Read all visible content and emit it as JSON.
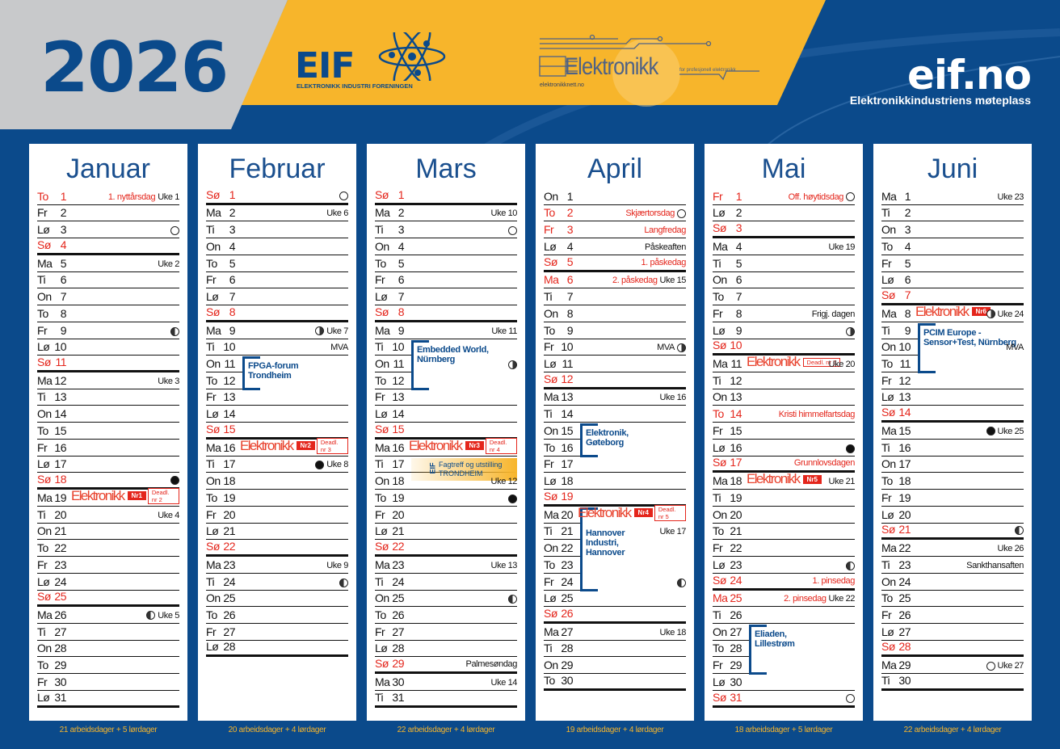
{
  "header": {
    "year": "2026",
    "eif_logo": "EIF",
    "eif_logo_sub": "ELEKTRONIKK INDUSTRI FORENINGEN",
    "elektronikk_logo": "Elektronikk",
    "elektronikk_tagline": "for profesjonell elektronikk",
    "elektronikk_url": "elektronikknett.no",
    "site": "eif.no",
    "tagline": "Elektronikkindustriens møteplass"
  },
  "colors": {
    "blue": "#0b4a8b",
    "yellow": "#f7b52b",
    "gray": "#c8c9cb",
    "red": "#e4261c"
  },
  "badge_word": "Elektronikk",
  "months": [
    {
      "name": "Januar",
      "footer": "21 arbeidsdager + 5 lørdager",
      "days": [
        {
          "wd": "To",
          "d": "1",
          "red": true,
          "note": "1. nyttårsdag",
          "noteRed": true,
          "uke": "Uke 1"
        },
        {
          "wd": "Fr",
          "d": "2"
        },
        {
          "wd": "Lø",
          "d": "3",
          "moon": "full"
        },
        {
          "wd": "Sø",
          "d": "4",
          "red": true
        },
        {
          "wd": "Ma",
          "d": "5",
          "uke": "Uke 2"
        },
        {
          "wd": "Ti",
          "d": "6"
        },
        {
          "wd": "On",
          "d": "7"
        },
        {
          "wd": "To",
          "d": "8"
        },
        {
          "wd": "Fr",
          "d": "9",
          "moon": "half-l"
        },
        {
          "wd": "Lø",
          "d": "10"
        },
        {
          "wd": "Sø",
          "d": "11",
          "red": true
        },
        {
          "wd": "Ma",
          "d": "12",
          "uke": "Uke 3"
        },
        {
          "wd": "Ti",
          "d": "13"
        },
        {
          "wd": "On",
          "d": "14"
        },
        {
          "wd": "To",
          "d": "15"
        },
        {
          "wd": "Fr",
          "d": "16"
        },
        {
          "wd": "Lø",
          "d": "17"
        },
        {
          "wd": "Sø",
          "d": "18",
          "red": true,
          "moon": "new"
        },
        {
          "wd": "Ma",
          "d": "19",
          "elek": {
            "nr": "Nr1",
            "deadline": "Deadl. nr 2"
          }
        },
        {
          "wd": "Ti",
          "d": "20",
          "uke": "Uke 4"
        },
        {
          "wd": "On",
          "d": "21"
        },
        {
          "wd": "To",
          "d": "22"
        },
        {
          "wd": "Fr",
          "d": "23"
        },
        {
          "wd": "Lø",
          "d": "24"
        },
        {
          "wd": "Sø",
          "d": "25",
          "red": true
        },
        {
          "wd": "Ma",
          "d": "26",
          "moon": "half-l",
          "uke": "Uke 5"
        },
        {
          "wd": "Ti",
          "d": "27"
        },
        {
          "wd": "On",
          "d": "28"
        },
        {
          "wd": "To",
          "d": "29"
        },
        {
          "wd": "Fr",
          "d": "30"
        },
        {
          "wd": "Lø",
          "d": "31"
        }
      ],
      "events": []
    },
    {
      "name": "Februar",
      "footer": "20 arbeidsdager + 4 lørdager",
      "days": [
        {
          "wd": "Sø",
          "d": "1",
          "red": true,
          "moon": "full"
        },
        {
          "wd": "Ma",
          "d": "2",
          "uke": "Uke 6"
        },
        {
          "wd": "Ti",
          "d": "3"
        },
        {
          "wd": "On",
          "d": "4"
        },
        {
          "wd": "To",
          "d": "5"
        },
        {
          "wd": "Fr",
          "d": "6"
        },
        {
          "wd": "Lø",
          "d": "7"
        },
        {
          "wd": "Sø",
          "d": "8",
          "red": true
        },
        {
          "wd": "Ma",
          "d": "9",
          "moon": "half-r",
          "uke": "Uke 7"
        },
        {
          "wd": "Ti",
          "d": "10",
          "mva": "MVA"
        },
        {
          "wd": "On",
          "d": "11"
        },
        {
          "wd": "To",
          "d": "12"
        },
        {
          "wd": "Fr",
          "d": "13"
        },
        {
          "wd": "Lø",
          "d": "14"
        },
        {
          "wd": "Sø",
          "d": "15",
          "red": true
        },
        {
          "wd": "Ma",
          "d": "16",
          "elek": {
            "nr": "Nr2",
            "deadline": "Deadl. nr 3"
          }
        },
        {
          "wd": "Ti",
          "d": "17",
          "moon": "new",
          "uke": "Uke 8"
        },
        {
          "wd": "On",
          "d": "18"
        },
        {
          "wd": "To",
          "d": "19"
        },
        {
          "wd": "Fr",
          "d": "20"
        },
        {
          "wd": "Lø",
          "d": "21"
        },
        {
          "wd": "Sø",
          "d": "22",
          "red": true
        },
        {
          "wd": "Ma",
          "d": "23",
          "uke": "Uke 9"
        },
        {
          "wd": "Ti",
          "d": "24",
          "moon": "half-l"
        },
        {
          "wd": "On",
          "d": "25"
        },
        {
          "wd": "To",
          "d": "26"
        },
        {
          "wd": "Fr",
          "d": "27"
        },
        {
          "wd": "Lø",
          "d": "28"
        }
      ],
      "events": [
        {
          "text": "FPGA-forum\nTrondheim",
          "start": 11,
          "days": 2
        }
      ]
    },
    {
      "name": "Mars",
      "footer": "22 arbeidsdager + 4 lørdager",
      "days": [
        {
          "wd": "Sø",
          "d": "1",
          "red": true
        },
        {
          "wd": "Ma",
          "d": "2",
          "uke": "Uke 10"
        },
        {
          "wd": "Ti",
          "d": "3",
          "moon": "full"
        },
        {
          "wd": "On",
          "d": "4"
        },
        {
          "wd": "To",
          "d": "5"
        },
        {
          "wd": "Fr",
          "d": "6"
        },
        {
          "wd": "Lø",
          "d": "7"
        },
        {
          "wd": "Sø",
          "d": "8",
          "red": true
        },
        {
          "wd": "Ma",
          "d": "9",
          "uke": "Uke 11"
        },
        {
          "wd": "Ti",
          "d": "10"
        },
        {
          "wd": "On",
          "d": "11",
          "moon": "half-r"
        },
        {
          "wd": "To",
          "d": "12"
        },
        {
          "wd": "Fr",
          "d": "13"
        },
        {
          "wd": "Lø",
          "d": "14"
        },
        {
          "wd": "Sø",
          "d": "15",
          "red": true
        },
        {
          "wd": "Ma",
          "d": "16",
          "elek": {
            "nr": "Nr3",
            "deadline": "Deadl. nr 4"
          }
        },
        {
          "wd": "Ti",
          "d": "17"
        },
        {
          "wd": "On",
          "d": "18",
          "uke": "Uke 12"
        },
        {
          "wd": "To",
          "d": "19",
          "moon": "new"
        },
        {
          "wd": "Fr",
          "d": "20"
        },
        {
          "wd": "Lø",
          "d": "21"
        },
        {
          "wd": "Sø",
          "d": "22",
          "red": true
        },
        {
          "wd": "Ma",
          "d": "23",
          "uke": "Uke 13"
        },
        {
          "wd": "Ti",
          "d": "24"
        },
        {
          "wd": "On",
          "d": "25",
          "moon": "half-l"
        },
        {
          "wd": "To",
          "d": "26"
        },
        {
          "wd": "Fr",
          "d": "27"
        },
        {
          "wd": "Lø",
          "d": "28"
        },
        {
          "wd": "Sø",
          "d": "29",
          "red": true,
          "note": "Palmesøndag"
        },
        {
          "wd": "Ma",
          "d": "30",
          "uke": "Uke 14"
        },
        {
          "wd": "Ti",
          "d": "31"
        }
      ],
      "events": [
        {
          "text": "Embedded World,\nNürnberg",
          "start": 10,
          "days": 3
        }
      ],
      "fagtreff": {
        "day": 17,
        "logo": "EIF",
        "line1": "Fagtreff og utstilling",
        "line2": "TRONDHEIM"
      }
    },
    {
      "name": "April",
      "footer": "19 arbeidsdager + 4 lørdager",
      "days": [
        {
          "wd": "On",
          "d": "1"
        },
        {
          "wd": "To",
          "d": "2",
          "red": true,
          "note": "Skjærtorsdag",
          "noteRed": true,
          "moon": "full"
        },
        {
          "wd": "Fr",
          "d": "3",
          "red": true,
          "note": "Langfredag",
          "noteRed": true
        },
        {
          "wd": "Lø",
          "d": "4",
          "note": "Påskeaften"
        },
        {
          "wd": "Sø",
          "d": "5",
          "red": true,
          "note": "1. påskedag",
          "noteRed": true
        },
        {
          "wd": "Ma",
          "d": "6",
          "red": true,
          "note": "2. påskedag",
          "noteRed": true,
          "uke": "Uke 15"
        },
        {
          "wd": "Ti",
          "d": "7"
        },
        {
          "wd": "On",
          "d": "8"
        },
        {
          "wd": "To",
          "d": "9"
        },
        {
          "wd": "Fr",
          "d": "10",
          "mva": "MVA",
          "moon": "half-r"
        },
        {
          "wd": "Lø",
          "d": "11"
        },
        {
          "wd": "Sø",
          "d": "12",
          "red": true
        },
        {
          "wd": "Ma",
          "d": "13",
          "uke": "Uke 16"
        },
        {
          "wd": "Ti",
          "d": "14"
        },
        {
          "wd": "On",
          "d": "15"
        },
        {
          "wd": "To",
          "d": "16"
        },
        {
          "wd": "Fr",
          "d": "17"
        },
        {
          "wd": "Lø",
          "d": "18"
        },
        {
          "wd": "Sø",
          "d": "19",
          "red": true
        },
        {
          "wd": "Ma",
          "d": "20",
          "elek": {
            "nr": "Nr4",
            "deadline": "Deadl. nr 5"
          }
        },
        {
          "wd": "Ti",
          "d": "21",
          "uke": "Uke 17"
        },
        {
          "wd": "On",
          "d": "22"
        },
        {
          "wd": "To",
          "d": "23"
        },
        {
          "wd": "Fr",
          "d": "24",
          "moon": "half-l"
        },
        {
          "wd": "Lø",
          "d": "25"
        },
        {
          "wd": "Sø",
          "d": "26",
          "red": true
        },
        {
          "wd": "Ma",
          "d": "27",
          "uke": "Uke 18"
        },
        {
          "wd": "Ti",
          "d": "28"
        },
        {
          "wd": "On",
          "d": "29"
        },
        {
          "wd": "To",
          "d": "30"
        }
      ],
      "events": [
        {
          "text": "Elektronik,\nGøteborg",
          "start": 15,
          "days": 2
        },
        {
          "text": "Hannover\nIndustri,\nHannover",
          "start": 20,
          "days": 5
        }
      ]
    },
    {
      "name": "Mai",
      "footer": "18 arbeidsdager + 5 lørdager",
      "days": [
        {
          "wd": "Fr",
          "d": "1",
          "red": true,
          "note": "Off. høytidsdag",
          "noteRed": true,
          "moon": "full"
        },
        {
          "wd": "Lø",
          "d": "2"
        },
        {
          "wd": "Sø",
          "d": "3",
          "red": true
        },
        {
          "wd": "Ma",
          "d": "4",
          "uke": "Uke 19"
        },
        {
          "wd": "Ti",
          "d": "5"
        },
        {
          "wd": "On",
          "d": "6"
        },
        {
          "wd": "To",
          "d": "7"
        },
        {
          "wd": "Fr",
          "d": "8",
          "note": "Frigj. dagen"
        },
        {
          "wd": "Lø",
          "d": "9",
          "moon": "half-r"
        },
        {
          "wd": "Sø",
          "d": "10",
          "red": true
        },
        {
          "wd": "Ma",
          "d": "11",
          "elek": {
            "deadline": "Deadl. nr 6"
          },
          "uke": "Uke 20"
        },
        {
          "wd": "Ti",
          "d": "12"
        },
        {
          "wd": "On",
          "d": "13"
        },
        {
          "wd": "To",
          "d": "14",
          "red": true,
          "note": "Kristi himmelfartsdag",
          "noteRed": true
        },
        {
          "wd": "Fr",
          "d": "15"
        },
        {
          "wd": "Lø",
          "d": "16",
          "moon": "new"
        },
        {
          "wd": "Sø",
          "d": "17",
          "red": true,
          "note": "Grunnlovsdagen",
          "noteRed": true
        },
        {
          "wd": "Ma",
          "d": "18",
          "elek": {
            "nr": "Nr5"
          },
          "uke": "Uke 21"
        },
        {
          "wd": "Ti",
          "d": "19"
        },
        {
          "wd": "On",
          "d": "20"
        },
        {
          "wd": "To",
          "d": "21"
        },
        {
          "wd": "Fr",
          "d": "22"
        },
        {
          "wd": "Lø",
          "d": "23",
          "moon": "half-l"
        },
        {
          "wd": "Sø",
          "d": "24",
          "red": true,
          "note": "1. pinsedag",
          "noteRed": true
        },
        {
          "wd": "Ma",
          "d": "25",
          "red": true,
          "note": "2. pinsedag",
          "noteRed": true,
          "uke": "Uke 22"
        },
        {
          "wd": "Ti",
          "d": "26"
        },
        {
          "wd": "On",
          "d": "27"
        },
        {
          "wd": "To",
          "d": "28"
        },
        {
          "wd": "Fr",
          "d": "29"
        },
        {
          "wd": "Lø",
          "d": "30"
        },
        {
          "wd": "Sø",
          "d": "31",
          "red": true,
          "moon": "full"
        }
      ],
      "events": [
        {
          "text": "Eliaden,\nLillestrøm",
          "start": 27,
          "days": 3
        }
      ]
    },
    {
      "name": "Juni",
      "footer": "22 arbeidsdager + 4 lørdager",
      "days": [
        {
          "wd": "Ma",
          "d": "1",
          "uke": "Uke 23"
        },
        {
          "wd": "Ti",
          "d": "2"
        },
        {
          "wd": "On",
          "d": "3"
        },
        {
          "wd": "To",
          "d": "4"
        },
        {
          "wd": "Fr",
          "d": "5"
        },
        {
          "wd": "Lø",
          "d": "6"
        },
        {
          "wd": "Sø",
          "d": "7",
          "red": true
        },
        {
          "wd": "Ma",
          "d": "8",
          "elek": {
            "nr": "Nr6"
          },
          "moon": "half-r",
          "uke": "Uke 24"
        },
        {
          "wd": "Ti",
          "d": "9"
        },
        {
          "wd": "On",
          "d": "10",
          "mva": "MVA"
        },
        {
          "wd": "To",
          "d": "11"
        },
        {
          "wd": "Fr",
          "d": "12"
        },
        {
          "wd": "Lø",
          "d": "13"
        },
        {
          "wd": "Sø",
          "d": "14",
          "red": true
        },
        {
          "wd": "Ma",
          "d": "15",
          "moon": "new",
          "uke": "Uke 25"
        },
        {
          "wd": "Ti",
          "d": "16"
        },
        {
          "wd": "On",
          "d": "17"
        },
        {
          "wd": "To",
          "d": "18"
        },
        {
          "wd": "Fr",
          "d": "19"
        },
        {
          "wd": "Lø",
          "d": "20"
        },
        {
          "wd": "Sø",
          "d": "21",
          "red": true,
          "moon": "half-l"
        },
        {
          "wd": "Ma",
          "d": "22",
          "uke": "Uke 26"
        },
        {
          "wd": "Ti",
          "d": "23",
          "note": "Sankthansaften"
        },
        {
          "wd": "On",
          "d": "24"
        },
        {
          "wd": "To",
          "d": "25"
        },
        {
          "wd": "Fr",
          "d": "26"
        },
        {
          "wd": "Lø",
          "d": "27"
        },
        {
          "wd": "Sø",
          "d": "28",
          "red": true
        },
        {
          "wd": "Ma",
          "d": "29",
          "moon": "full",
          "uke": "Uke 27"
        },
        {
          "wd": "Ti",
          "d": "30"
        }
      ],
      "events": [
        {
          "text": "PCIM Europe -\nSensor+Test, Nürnberg",
          "start": 9,
          "days": 3
        }
      ]
    }
  ]
}
